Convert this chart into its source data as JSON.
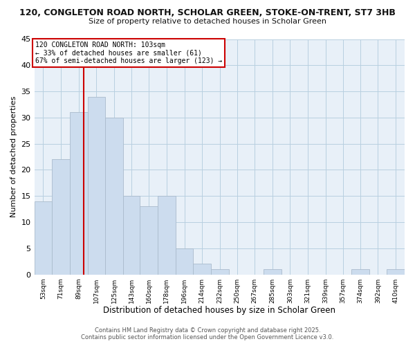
{
  "title_line1": "120, CONGLETON ROAD NORTH, SCHOLAR GREEN, STOKE-ON-TRENT, ST7 3HB",
  "title_line2": "Size of property relative to detached houses in Scholar Green",
  "xlabel": "Distribution of detached houses by size in Scholar Green",
  "ylabel": "Number of detached properties",
  "bar_bins": [
    53,
    71,
    89,
    107,
    125,
    143,
    160,
    178,
    196,
    214,
    232,
    250,
    267,
    285,
    303,
    321,
    339,
    357,
    374,
    392,
    410
  ],
  "bar_heights": [
    14,
    22,
    31,
    34,
    30,
    15,
    13,
    15,
    5,
    2,
    1,
    0,
    0,
    1,
    0,
    0,
    0,
    0,
    1,
    0,
    1
  ],
  "bar_color": "#ccdcee",
  "bar_edgecolor": "#aabbcc",
  "grid_color": "#b8cfe0",
  "vline_x": 103,
  "vline_color": "#cc0000",
  "annotation_title": "120 CONGLETON ROAD NORTH: 103sqm",
  "annotation_line2": "← 33% of detached houses are smaller (61)",
  "annotation_line3": "67% of semi-detached houses are larger (123) →",
  "annotation_box_facecolor": "#ffffff",
  "annotation_box_edgecolor": "#cc0000",
  "ylim": [
    0,
    45
  ],
  "yticks": [
    0,
    5,
    10,
    15,
    20,
    25,
    30,
    35,
    40,
    45
  ],
  "footer_line1": "Contains HM Land Registry data © Crown copyright and database right 2025.",
  "footer_line2": "Contains public sector information licensed under the Open Government Licence v3.0.",
  "bg_color": "#ffffff",
  "plot_bg_color": "#e8f0f8"
}
